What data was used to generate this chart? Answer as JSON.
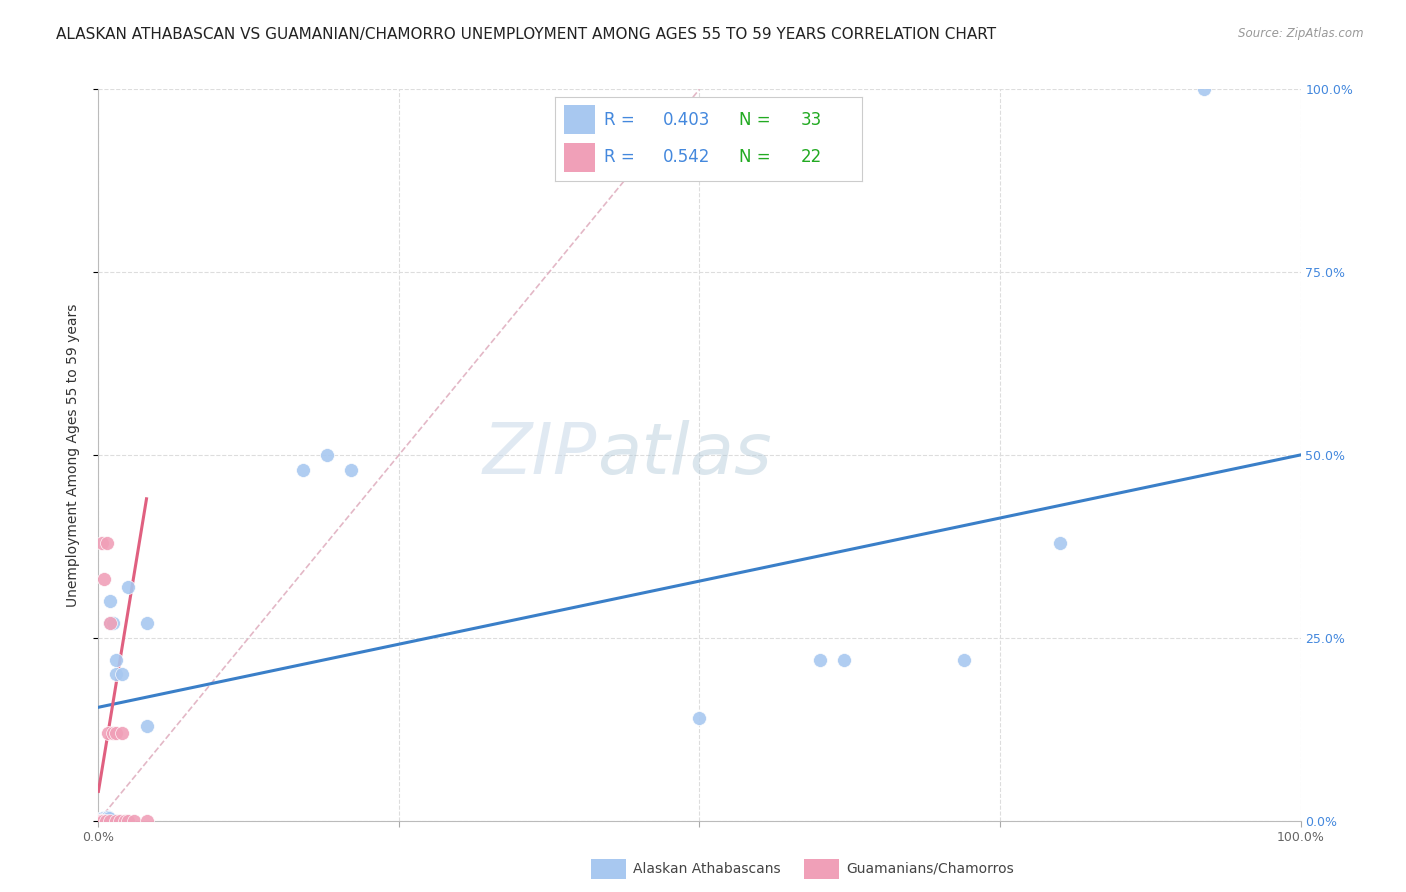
{
  "title": "ALASKAN ATHABASCAN VS GUAMANIAN/CHAMORRO UNEMPLOYMENT AMONG AGES 55 TO 59 YEARS CORRELATION CHART",
  "source": "Source: ZipAtlas.com",
  "ylabel": "Unemployment Among Ages 55 to 59 years",
  "xlim": [
    0,
    1.0
  ],
  "ylim": [
    0,
    1.0
  ],
  "watermark_zip": "ZIP",
  "watermark_atlas": "atlas",
  "blue_R": 0.403,
  "blue_N": 33,
  "pink_R": 0.542,
  "pink_N": 22,
  "blue_color": "#a8c8f0",
  "pink_color": "#f0a0b8",
  "blue_line_color": "#3a7fc8",
  "pink_line_color": "#e06080",
  "diag_line_color": "#e0b0c0",
  "grid_color": "#dddddd",
  "legend_R_color": "#4488dd",
  "legend_N_color": "#22aa22",
  "blue_scatter_x": [
    0.0,
    0.0,
    0.0,
    0.0,
    0.002,
    0.002,
    0.003,
    0.004,
    0.004,
    0.005,
    0.006,
    0.007,
    0.008,
    0.008,
    0.009,
    0.01,
    0.01,
    0.012,
    0.015,
    0.015,
    0.02,
    0.025,
    0.04,
    0.04,
    0.17,
    0.19,
    0.21,
    0.5,
    0.6,
    0.62,
    0.72,
    0.8,
    0.92
  ],
  "blue_scatter_y": [
    0.0,
    0.0,
    0.0,
    0.002,
    0.0,
    0.002,
    0.0,
    0.0,
    0.003,
    0.002,
    0.0,
    0.003,
    0.0,
    0.005,
    0.003,
    0.27,
    0.3,
    0.27,
    0.2,
    0.22,
    0.2,
    0.32,
    0.27,
    0.13,
    0.48,
    0.5,
    0.48,
    0.14,
    0.22,
    0.22,
    0.22,
    0.38,
    1.0
  ],
  "pink_scatter_x": [
    0.0,
    0.0,
    0.0,
    0.002,
    0.002,
    0.003,
    0.004,
    0.005,
    0.006,
    0.007,
    0.008,
    0.01,
    0.01,
    0.012,
    0.015,
    0.015,
    0.018,
    0.02,
    0.022,
    0.025,
    0.03,
    0.04
  ],
  "pink_scatter_y": [
    0.0,
    0.0,
    0.0,
    0.0,
    0.0,
    0.38,
    0.0,
    0.33,
    0.0,
    0.38,
    0.12,
    0.0,
    0.27,
    0.12,
    0.0,
    0.12,
    0.0,
    0.12,
    0.0,
    0.0,
    0.0,
    0.0
  ],
  "blue_line_x": [
    0.0,
    1.0
  ],
  "blue_line_y": [
    0.155,
    0.5
  ],
  "pink_line_x": [
    0.0,
    0.04
  ],
  "pink_line_y": [
    0.04,
    0.44
  ],
  "diag_line_x": [
    0.0,
    0.5
  ],
  "diag_line_y": [
    0.0,
    1.0
  ],
  "title_fontsize": 11,
  "axis_label_fontsize": 10,
  "tick_fontsize": 9,
  "legend_fontsize": 13,
  "watermark_fontsize_zip": 52,
  "watermark_fontsize_atlas": 52,
  "scatter_size": 100,
  "bottom_legend_label1": "Alaskan Athabascans",
  "bottom_legend_label2": "Guamanians/Chamorros"
}
